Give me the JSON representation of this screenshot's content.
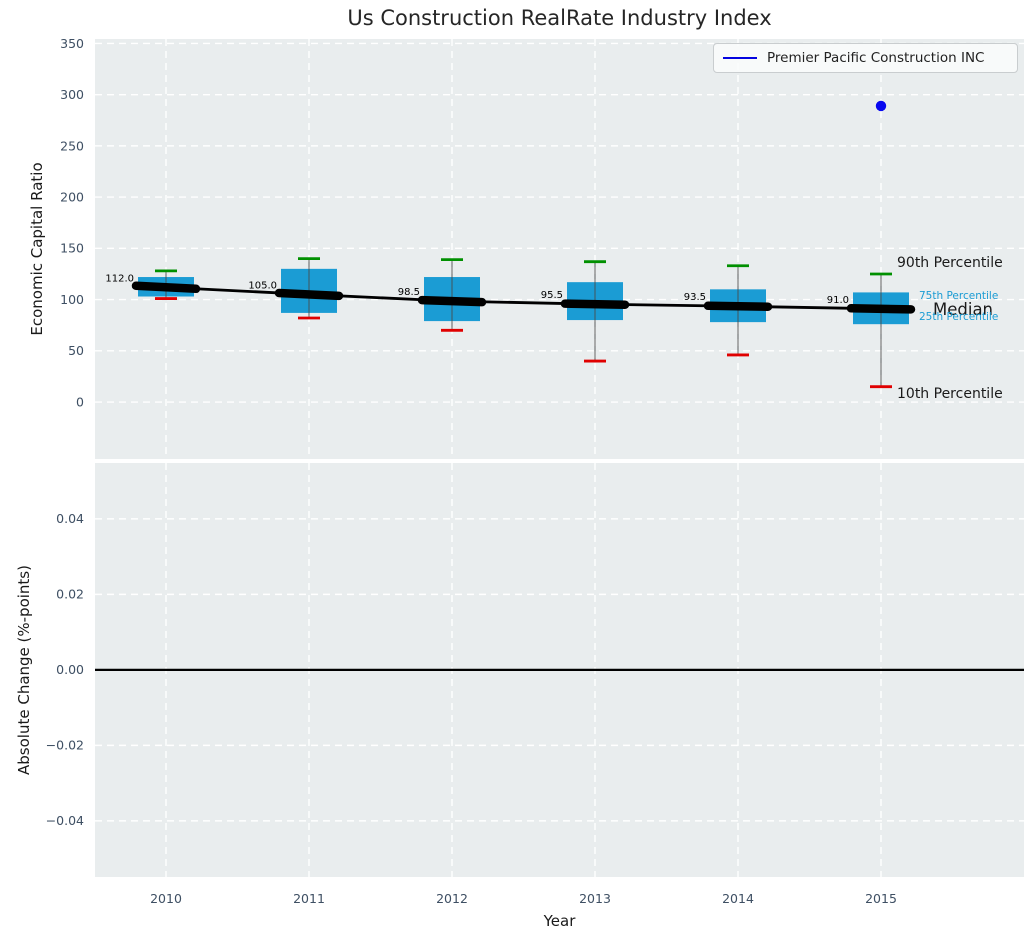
{
  "title": "Us Construction RealRate Industry Index",
  "xlabel": "Year",
  "legend": {
    "label": "Premier Pacific Construction INC",
    "line_color": "#0404e0"
  },
  "annotations": {
    "p90": "90th Percentile",
    "p75": "75th Percentile",
    "med": "Median",
    "p25": "25th Percentile",
    "p10": "10th Percentile"
  },
  "top_plot": {
    "ylabel": "Economic Capital Ratio",
    "yticks": [
      {
        "label": "350",
        "value": 350
      },
      {
        "label": "300",
        "value": 300
      },
      {
        "label": "250",
        "value": 250
      },
      {
        "label": "200",
        "value": 200
      },
      {
        "label": "150",
        "value": 150
      },
      {
        "label": "100",
        "value": 100
      },
      {
        "label": "50",
        "value": 50
      },
      {
        "label": "0",
        "value": 0
      }
    ],
    "ylim": [
      -55,
      354
    ]
  },
  "bottom_plot": {
    "ylabel": "Absolute Change (%-points)",
    "yticks": [
      {
        "label": "0.04",
        "value": 0.04
      },
      {
        "label": "0.02",
        "value": 0.02
      },
      {
        "label": "0.00",
        "value": 0.0
      },
      {
        "label": "−0.02",
        "value": -0.02
      },
      {
        "label": "−0.04",
        "value": -0.04
      }
    ],
    "ylim": [
      -0.055,
      0.055
    ],
    "zero_line": 0.0
  },
  "xticks": [
    {
      "label": "2010",
      "value": 2010
    },
    {
      "label": "2011",
      "value": 2011
    },
    {
      "label": "2012",
      "value": 2012
    },
    {
      "label": "2013",
      "value": 2013
    },
    {
      "label": "2014",
      "value": 2014
    },
    {
      "label": "2015",
      "value": 2015
    }
  ],
  "chart_data": {
    "type": "box",
    "title": "Us Construction RealRate Industry Index",
    "x": [
      2010,
      2011,
      2012,
      2013,
      2014,
      2015
    ],
    "boxes": [
      {
        "year": 2010,
        "p10": 101,
        "p25": 103,
        "median": 112.0,
        "p75": 122,
        "p90": 128,
        "label": "112.0"
      },
      {
        "year": 2011,
        "p10": 82,
        "p25": 87,
        "median": 105.0,
        "p75": 130,
        "p90": 140,
        "label": "105.0"
      },
      {
        "year": 2012,
        "p10": 70,
        "p25": 79,
        "median": 98.5,
        "p75": 122,
        "p90": 139,
        "label": "98.5"
      },
      {
        "year": 2013,
        "p10": 40,
        "p25": 80,
        "median": 95.5,
        "p75": 117,
        "p90": 137,
        "label": "95.5"
      },
      {
        "year": 2014,
        "p10": 46,
        "p25": 78,
        "median": 93.5,
        "p75": 110,
        "p90": 133,
        "label": "93.5"
      },
      {
        "year": 2015,
        "p10": 15,
        "p25": 76,
        "median": 91.0,
        "p75": 107,
        "p90": 125,
        "label": "91.0"
      }
    ],
    "medians": [
      112.0,
      105.0,
      98.5,
      95.5,
      93.5,
      91.0
    ],
    "company_series": {
      "name": "Premier Pacific Construction INC",
      "points": [
        {
          "year": 2015,
          "value": 289
        }
      ]
    },
    "legend_position": "upper right",
    "grid": true
  },
  "colors": {
    "plot_bg": "#e9edee",
    "grid": "#ffffff",
    "box_fill": "#1b9cd4",
    "whisker_line": "#4a4a4a",
    "cap_high": "#009000",
    "cap_low": "#e00000",
    "median_line": "#000000",
    "company_point": "#0808f0",
    "tick_text": "#3e4f63",
    "zero_line": "#000000"
  }
}
